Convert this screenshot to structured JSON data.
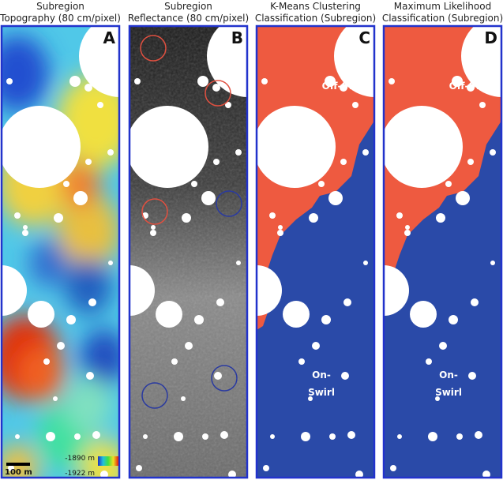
{
  "panels": [
    {
      "title_lines": [
        "Subregion",
        "Topography (80 cm/pixel)"
      ],
      "letter": "A"
    },
    {
      "title_lines": [
        "Subregion",
        "Reflectance (80 cm/pixel)"
      ],
      "letter": "B"
    },
    {
      "title_lines": [
        "K-Means Clustering",
        "Classification (Subregion)"
      ],
      "letter": "C"
    },
    {
      "title_lines": [
        "Maximum Likelihood",
        "Classification (Subregion)"
      ],
      "letter": "D"
    }
  ],
  "labels": {
    "off_swirl": "Off-Swirl",
    "on_swirl": [
      "On-",
      "Swirl"
    ]
  },
  "scale_bar": "100 m",
  "colorbar": {
    "max": "-1890 m",
    "min": "-1922 m"
  }
}
